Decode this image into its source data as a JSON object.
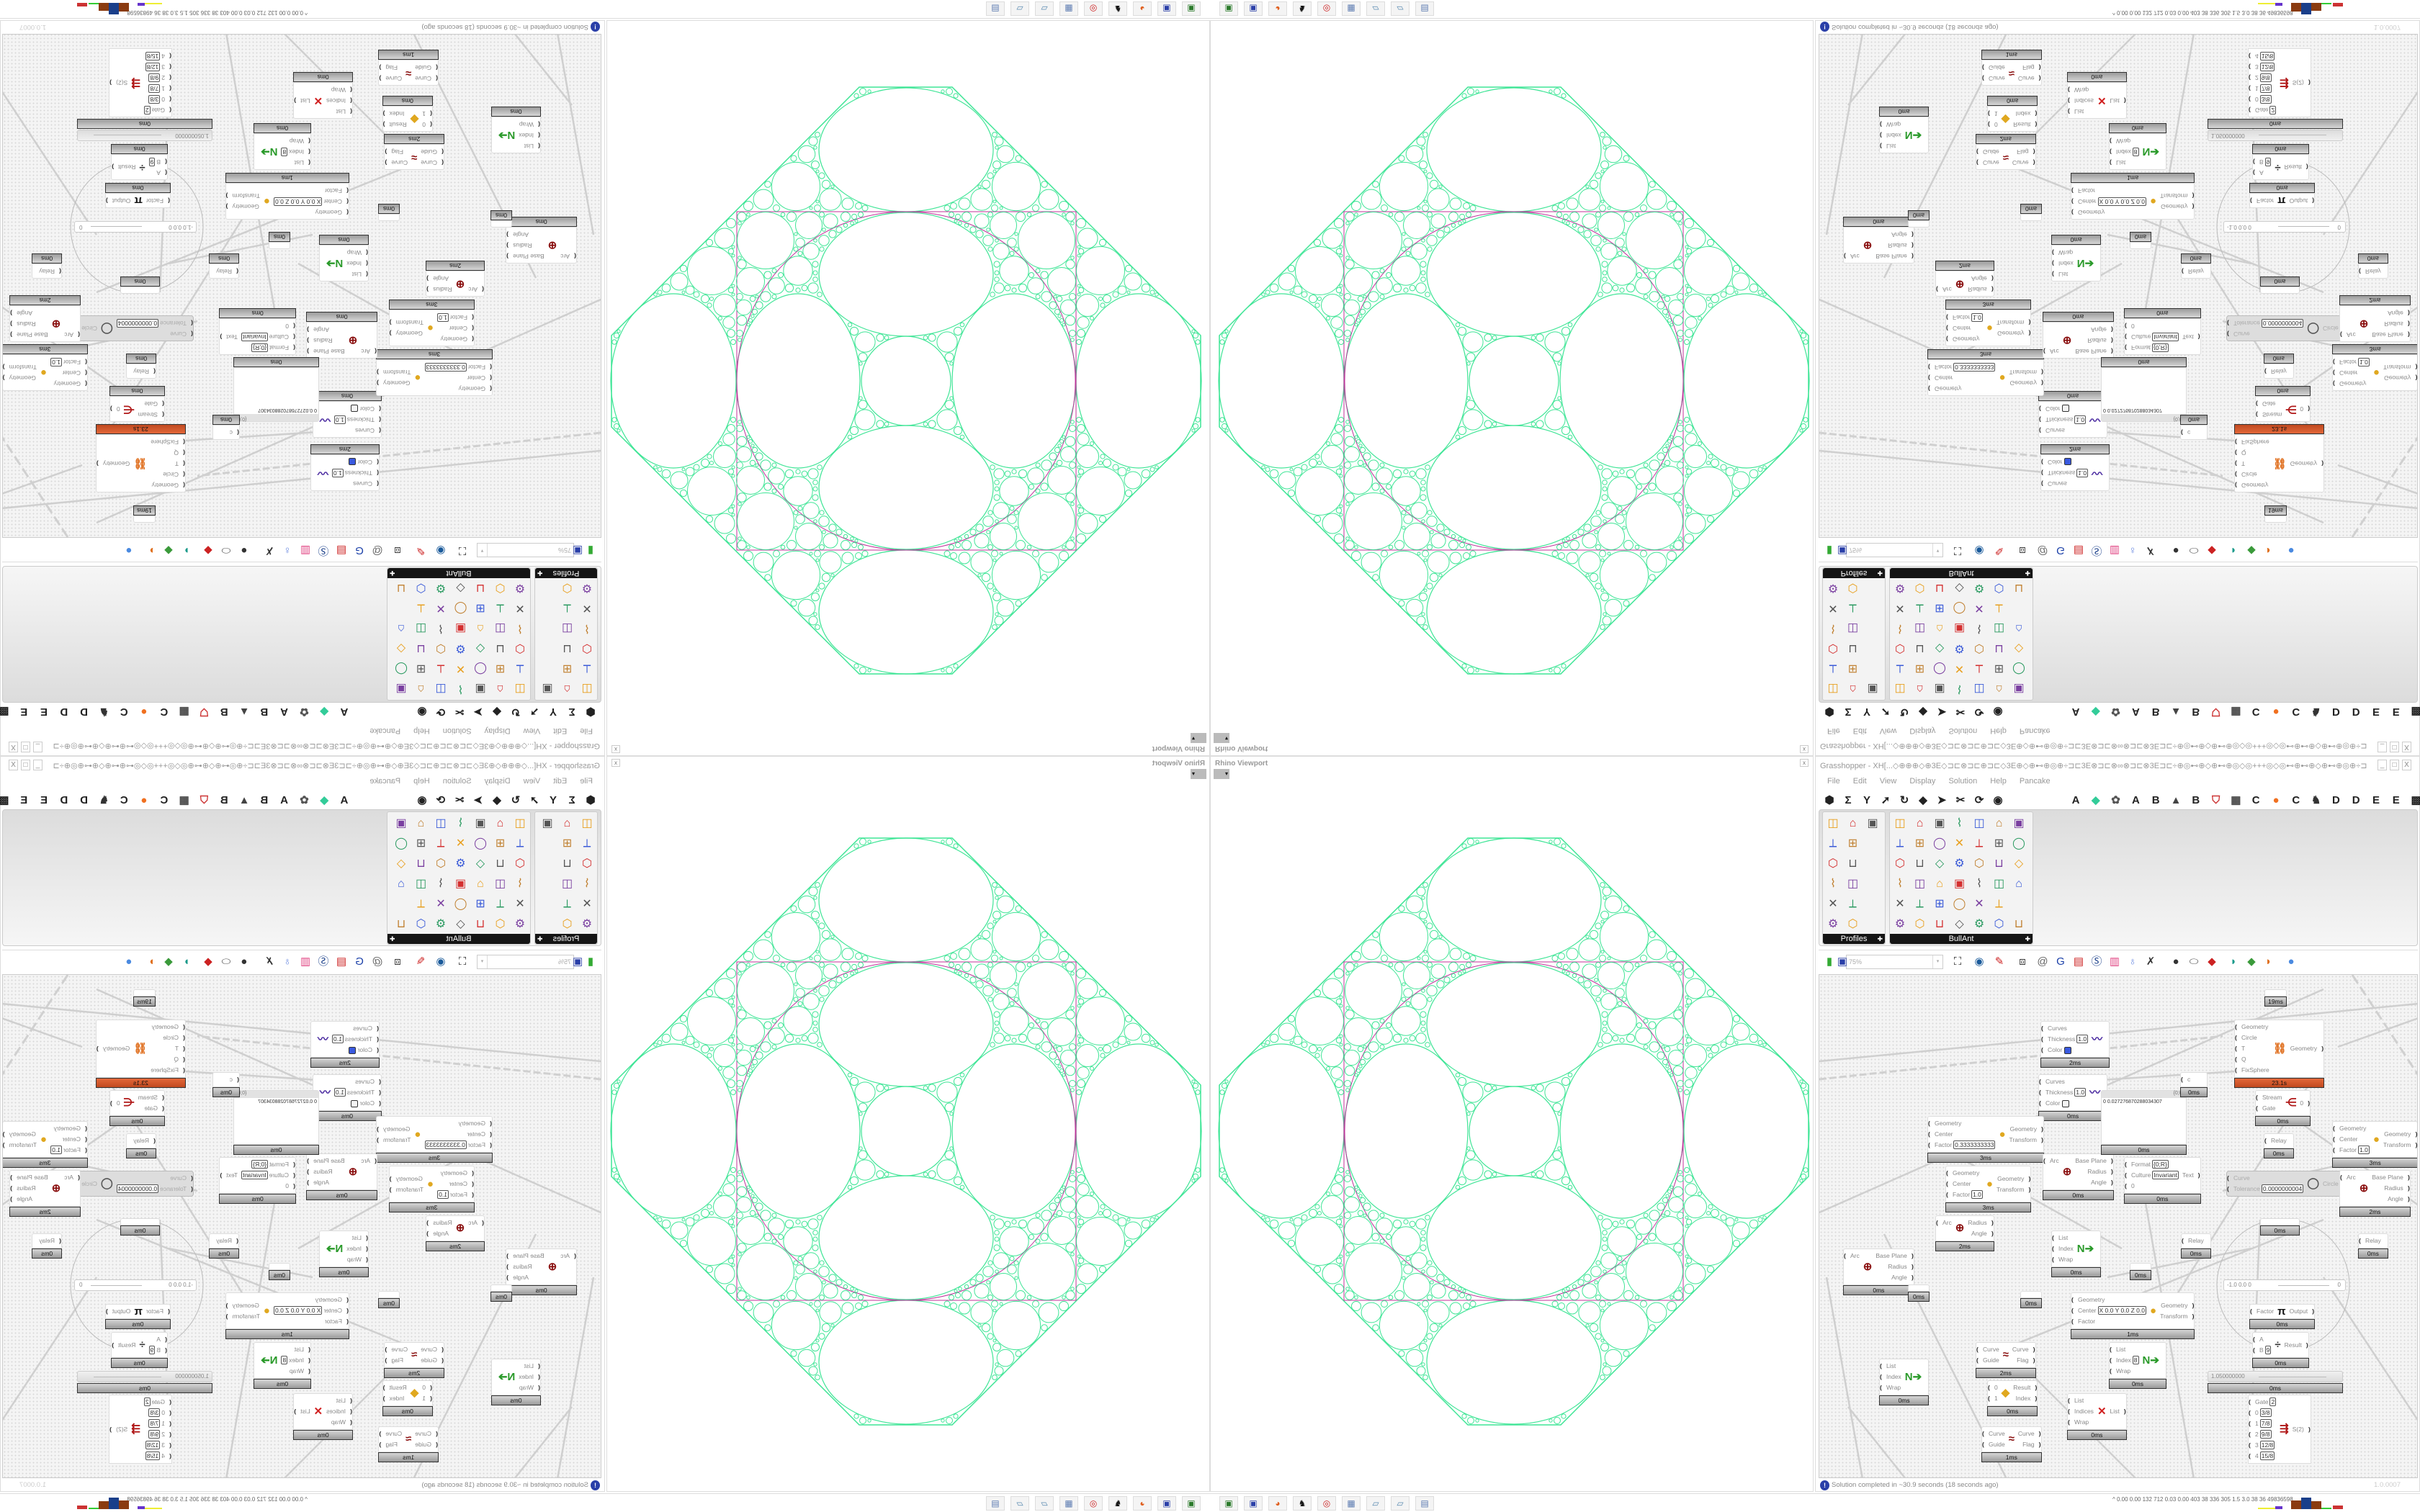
{
  "viewport": {
    "title": "Rhino Viewport",
    "dropdown": "▾",
    "close": "x"
  },
  "gh": {
    "window_title": "Grasshopper - XH[...◇⊕⊕⊕◇⊕3E◇⊐⊏⊗⊐⊏⊕⊐⊏◇3E⊕◇⊕⊷⊕◎⊕÷⊐⊏3E⊗⊐⊏⊗∞⊗⊐⊏⊗3E⊐⊏÷⊕◎⊷⊕◇⊕⊷⊕◎◇◎+++◎◇◎⊷⊕⊷⊕◇⊕⊷⊕◎⊕÷⊐⊏3E⊗⊐⊏∞...",
    "window_buttons": [
      "_",
      "□",
      "X"
    ],
    "menu": [
      "File",
      "Edit",
      "View",
      "Display",
      "Solution",
      "Help",
      "Pancake"
    ],
    "ribbon_left": [
      "params",
      "maths",
      "sets",
      "vector",
      "curve",
      "surface",
      "mesh",
      "intersect",
      "transform",
      "display"
    ],
    "ribbon_tabs": [
      "A",
      "",
      "",
      "A",
      "B",
      "",
      "B",
      "",
      "",
      "C",
      "",
      "C",
      "",
      "D",
      "D",
      "E",
      "E",
      ""
    ],
    "ribbon_tab_icons": [
      "",
      "green-gem-icon",
      "plugin-icon",
      "",
      "",
      "mountain-icon",
      "",
      "shield-icon",
      "grid-icon",
      "",
      "orange-dot-icon",
      "",
      "bird-icon",
      "",
      "",
      "",
      "",
      "checker-icon"
    ],
    "panels": {
      "profiles": "Profiles",
      "bullant": "BullAnt",
      "pin": "✚"
    },
    "canvas_toolbar": {
      "zoom": "75%",
      "zoom_dropdown": "▾"
    },
    "status": {
      "message": "Solution completed in ~30.9 seconds (18 seconds ago)",
      "version": "1.0.0007",
      "info_icon": "!"
    }
  },
  "nodes": [
    {
      "kind": "component",
      "icon": "custom-preview-icon",
      "inputs": [
        {
          "label": "Curves"
        },
        {
          "label": "Thickness",
          "value": "1.0"
        },
        {
          "label": "Color",
          "swatch": "#3a5ae0"
        }
      ],
      "outputs": [],
      "time": "2ms"
    },
    {
      "kind": "component",
      "icon": "custom-preview-icon",
      "inputs": [
        {
          "label": "Curves"
        },
        {
          "label": "Thickness",
          "value": "1.0"
        },
        {
          "label": "Color",
          "swatch": "#f4f4f4"
        }
      ],
      "outputs": [],
      "time": "0ms"
    },
    {
      "kind": "component",
      "icon": "scale-icon",
      "inputs": [
        {
          "label": "Geometry"
        },
        {
          "label": "Center"
        },
        {
          "label": "Factor",
          "value": "0.3333333333"
        }
      ],
      "outputs": [
        {
          "label": "Geometry"
        },
        {
          "label": "Transform"
        }
      ],
      "time": "3ms"
    },
    {
      "kind": "component",
      "icon": "scale-icon",
      "inputs": [
        {
          "label": "Geometry"
        },
        {
          "label": "Center"
        },
        {
          "label": "Factor",
          "value": "1.0"
        }
      ],
      "outputs": [
        {
          "label": "Geometry"
        },
        {
          "label": "Transform"
        }
      ],
      "time": "3ms"
    },
    {
      "kind": "component",
      "icon": "arc-icon",
      "inputs": [
        {
          "label": "Arc"
        }
      ],
      "outputs": [
        {
          "label": "Base Plane"
        },
        {
          "label": "Radius"
        },
        {
          "label": "Angle"
        }
      ],
      "time": "0ms"
    },
    {
      "kind": "panel",
      "header": "{0;0}",
      "text": "0 0.027276870288034307",
      "time": "0ms"
    },
    {
      "kind": "component",
      "icon": "kangaroo-solver-icon",
      "inputs": [
        {
          "label": "Geometry"
        },
        {
          "label": "Circle"
        },
        {
          "label": "T"
        },
        {
          "label": "Q"
        },
        {
          "label": "FixSphere"
        }
      ],
      "outputs": [
        {
          "label": "Geometry"
        }
      ],
      "time": "23.1s",
      "bar": "orange"
    },
    {
      "kind": "component",
      "icon": "",
      "inputs": [
        {
          "label": "c"
        }
      ],
      "outputs": [],
      "time": "0ms"
    },
    {
      "kind": "component",
      "icon": "stream-gate-icon",
      "inputs": [
        {
          "label": "Stream"
        },
        {
          "label": "Gate"
        }
      ],
      "outputs": [
        {
          "label": "0"
        }
      ],
      "time": "0ms"
    },
    {
      "kind": "component",
      "icon": "",
      "inputs": [
        {
          "label": "Relay"
        }
      ],
      "outputs": [],
      "time": "0ms"
    },
    {
      "kind": "component",
      "icon": "",
      "inputs": [
        {
          "label": "Format",
          "value": "{0;R}"
        },
        {
          "label": "Culture",
          "value": "Invariant"
        },
        {
          "label": "0"
        }
      ],
      "outputs": [
        {
          "label": "Text"
        }
      ],
      "time": "0ms"
    },
    {
      "kind": "disabled",
      "icon": "circle-fit-icon",
      "inputs": [
        {
          "label": "Curve"
        },
        {
          "label": "Tolerance",
          "value": "0.0000000004"
        }
      ],
      "outputs": [
        {
          "label": "Circle"
        }
      ],
      "time": ""
    },
    {
      "kind": "component",
      "icon": "scale-icon",
      "inputs": [
        {
          "label": "Geometry"
        },
        {
          "label": "Center"
        },
        {
          "label": "Factor",
          "value": "1.0"
        }
      ],
      "outputs": [
        {
          "label": "Geometry"
        },
        {
          "label": "Transform"
        }
      ],
      "time": "3ms"
    },
    {
      "kind": "component",
      "icon": "arc-icon",
      "inputs": [
        {
          "label": "Arc"
        }
      ],
      "outputs": [
        {
          "label": "Base Plane"
        },
        {
          "label": "Radius"
        },
        {
          "label": "Angle"
        }
      ],
      "time": "2ms"
    },
    {
      "kind": "component",
      "icon": "arc-icon",
      "inputs": [
        {
          "label": "Arc"
        }
      ],
      "outputs": [
        {
          "label": "Base Plane"
        },
        {
          "label": "Radius"
        },
        {
          "label": "Angle"
        }
      ],
      "time": "0ms"
    },
    {
      "kind": "component",
      "icon": "list-item-icon",
      "inputs": [
        {
          "label": "List"
        },
        {
          "label": "Index"
        },
        {
          "label": "Wrap"
        }
      ],
      "outputs": [],
      "time": "0ms"
    },
    {
      "kind": "component",
      "icon": "",
      "inputs": [
        {
          "label": "Relay"
        }
      ],
      "outputs": [],
      "time": "0ms"
    },
    {
      "kind": "component",
      "icon": "",
      "inputs": [
        {
          "label": "Relay"
        }
      ],
      "outputs": [],
      "time": "0ms"
    },
    {
      "kind": "component",
      "icon": "",
      "inputs": [],
      "outputs": [],
      "time": "0ms"
    },
    {
      "kind": "component",
      "icon": "",
      "inputs": [],
      "outputs": [],
      "time": "0ms"
    },
    {
      "kind": "component",
      "icon": "",
      "inputs": [],
      "outputs": [],
      "time": "0ms"
    },
    {
      "kind": "component",
      "icon": "scale-icon",
      "inputs": [
        {
          "label": "Geometry"
        },
        {
          "label": "Center",
          "value": "X 0.0 Y 0.0 Z 0.0"
        },
        {
          "label": "Factor"
        }
      ],
      "outputs": [
        {
          "label": "Geometry"
        },
        {
          "label": "Transform"
        }
      ],
      "time": "1ms"
    },
    {
      "kind": "component",
      "icon": "pi-icon",
      "inputs": [
        {
          "label": "Factor"
        }
      ],
      "outputs": [
        {
          "label": "Output"
        }
      ],
      "time": "0ms"
    },
    {
      "kind": "component",
      "icon": "division-icon",
      "inputs": [
        {
          "label": "A"
        },
        {
          "label": "B",
          "value": "9"
        }
      ],
      "outputs": [
        {
          "label": "Result"
        }
      ],
      "time": "0ms"
    },
    {
      "kind": "component",
      "icon": "curve-guide-icon",
      "inputs": [
        {
          "label": "Curve"
        },
        {
          "label": "Guide"
        }
      ],
      "outputs": [
        {
          "label": "Curve"
        },
        {
          "label": "Flag"
        }
      ],
      "time": "2ms"
    },
    {
      "kind": "component",
      "icon": "list-item-icon",
      "inputs": [
        {
          "label": "List"
        },
        {
          "label": "Index",
          "value": "8"
        },
        {
          "label": "Wrap"
        }
      ],
      "outputs": [],
      "time": "0ms"
    },
    {
      "kind": "component",
      "icon": "list-item-icon",
      "inputs": [
        {
          "label": "List"
        },
        {
          "label": "Index"
        },
        {
          "label": "Wrap"
        }
      ],
      "outputs": [],
      "time": "0ms"
    },
    {
      "kind": "component",
      "icon": "gate-icon",
      "inputs": [
        {
          "label": "0"
        },
        {
          "label": "1"
        }
      ],
      "outputs": [
        {
          "label": "Result"
        },
        {
          "label": "Index"
        }
      ],
      "time": "0ms"
    },
    {
      "kind": "component",
      "icon": "cull-index-icon",
      "inputs": [
        {
          "label": "List"
        },
        {
          "label": "Indices"
        },
        {
          "label": "Wrap"
        }
      ],
      "outputs": [
        {
          "label": "List"
        }
      ],
      "time": "0ms"
    },
    {
      "kind": "component",
      "icon": "curve-guide-icon",
      "inputs": [
        {
          "label": "Curve"
        },
        {
          "label": "Guide"
        }
      ],
      "outputs": [
        {
          "label": "Curve"
        },
        {
          "label": "Flag"
        }
      ],
      "time": "1ms"
    },
    {
      "kind": "component",
      "icon": "stream-filter-icon",
      "inputs": [
        {
          "label": "Gate",
          "value": "2"
        },
        {
          "label": "0",
          "value": "3/8"
        },
        {
          "label": "1",
          "value": "7/8"
        },
        {
          "label": "2",
          "value": "9/8"
        },
        {
          "label": "3",
          "value": "12/8"
        },
        {
          "label": "4",
          "value": "15/8"
        }
      ],
      "outputs": [
        {
          "label": "S(2)"
        }
      ],
      "time": ""
    },
    {
      "kind": "component",
      "icon": "arc-icon",
      "inputs": [
        {
          "label": "Arc"
        }
      ],
      "outputs": [
        {
          "label": "Radius"
        },
        {
          "label": "Angle"
        }
      ],
      "time": "2ms"
    },
    {
      "kind": "component",
      "icon": "",
      "inputs": [],
      "outputs": [],
      "time": "19ms"
    },
    {
      "kind": "component",
      "icon": "",
      "inputs": [],
      "outputs": [],
      "time": "0ms"
    }
  ],
  "sliders": [
    {
      "text": "-1.0  0.0  0",
      "value": "0",
      "time": ""
    },
    {
      "text": "1.050000000",
      "value": "",
      "time": "0ms"
    }
  ],
  "taskbar": {
    "apps": [
      "terminal-icon",
      "save-64-icon",
      "firefox-icon",
      "rhino-icon",
      "target-icon",
      "calculator-icon",
      "notes-icon",
      "notes-icon",
      "scanner-icon"
    ],
    "tray": "^  0.00 0.00 132 712 0.03 0.00 403  38  336  305  1.5  3.0  38  36  49836598"
  },
  "colors": {
    "packing": "#3fe596",
    "frame": "#c0309a",
    "solver_bar": "#d2552a",
    "accent_blue": "#2a3fa8"
  }
}
